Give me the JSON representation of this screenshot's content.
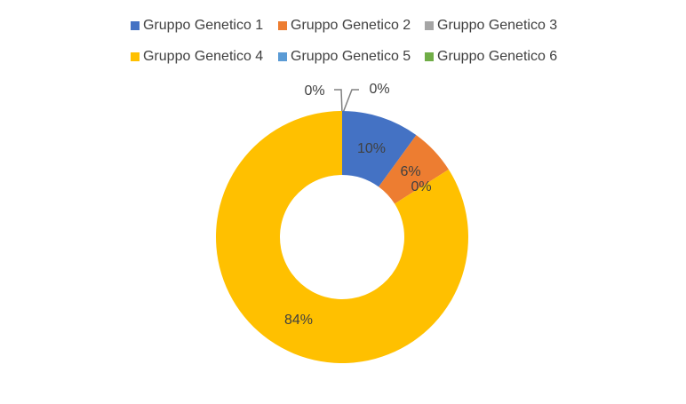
{
  "chart_data": {
    "type": "doughnut",
    "categories": [
      "Gruppo Genetico 1",
      "Gruppo Genetico 2",
      "Gruppo Genetico 3",
      "Gruppo Genetico 4",
      "Gruppo Genetico 5",
      "Gruppo Genetico 6"
    ],
    "values": [
      10,
      6,
      0,
      84,
      0,
      0
    ],
    "value_labels": [
      "10%",
      "6%",
      "0%",
      "84%",
      "0%",
      "0%"
    ],
    "colors": [
      "#4472c4",
      "#ed7d31",
      "#a5a5a5",
      "#ffc000",
      "#5b9bd5",
      "#70ad47"
    ],
    "legend": "top"
  }
}
